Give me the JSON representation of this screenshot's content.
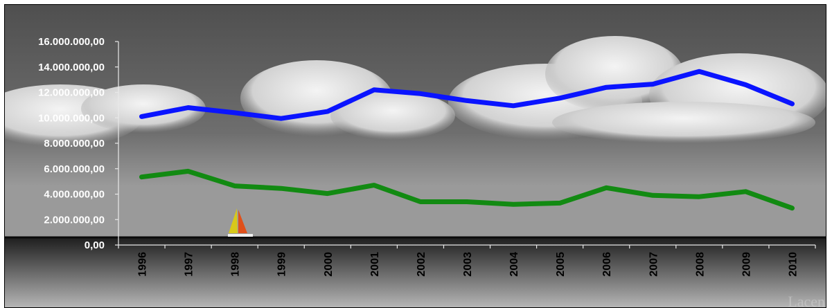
{
  "chart_data": {
    "type": "line",
    "categories": [
      "1996",
      "1997",
      "1998",
      "1999",
      "2000",
      "2001",
      "2002",
      "2003",
      "2004",
      "2005",
      "2006",
      "2007",
      "2008",
      "2009",
      "2010"
    ],
    "series": [
      {
        "color": "#0a14ff",
        "values": [
          10100000,
          10800000,
          10400000,
          9950000,
          10500000,
          12200000,
          11900000,
          11350000,
          10950000,
          11550000,
          12400000,
          12650000,
          13650000,
          12600000,
          11100000
        ]
      },
      {
        "color": "#128a12",
        "values": [
          5350000,
          5800000,
          4650000,
          4450000,
          4050000,
          4700000,
          3400000,
          3400000,
          3200000,
          3300000,
          4500000,
          3900000,
          3800000,
          4200000,
          2900000
        ]
      }
    ],
    "y_ticks": [
      "0,00",
      "2.000.000,00",
      "4.000.000,00",
      "6.000.000,00",
      "8.000.000,00",
      "10.000.000,00",
      "12.000.000,00",
      "14.000.000,00",
      "16.000.000,00"
    ],
    "ylim": [
      0,
      16000000
    ],
    "grid": false,
    "legend": "none",
    "title": "",
    "xlabel": "",
    "ylabel": ""
  },
  "background": {
    "description_icon": "sailboat-icon",
    "watermark": "Lacen"
  }
}
